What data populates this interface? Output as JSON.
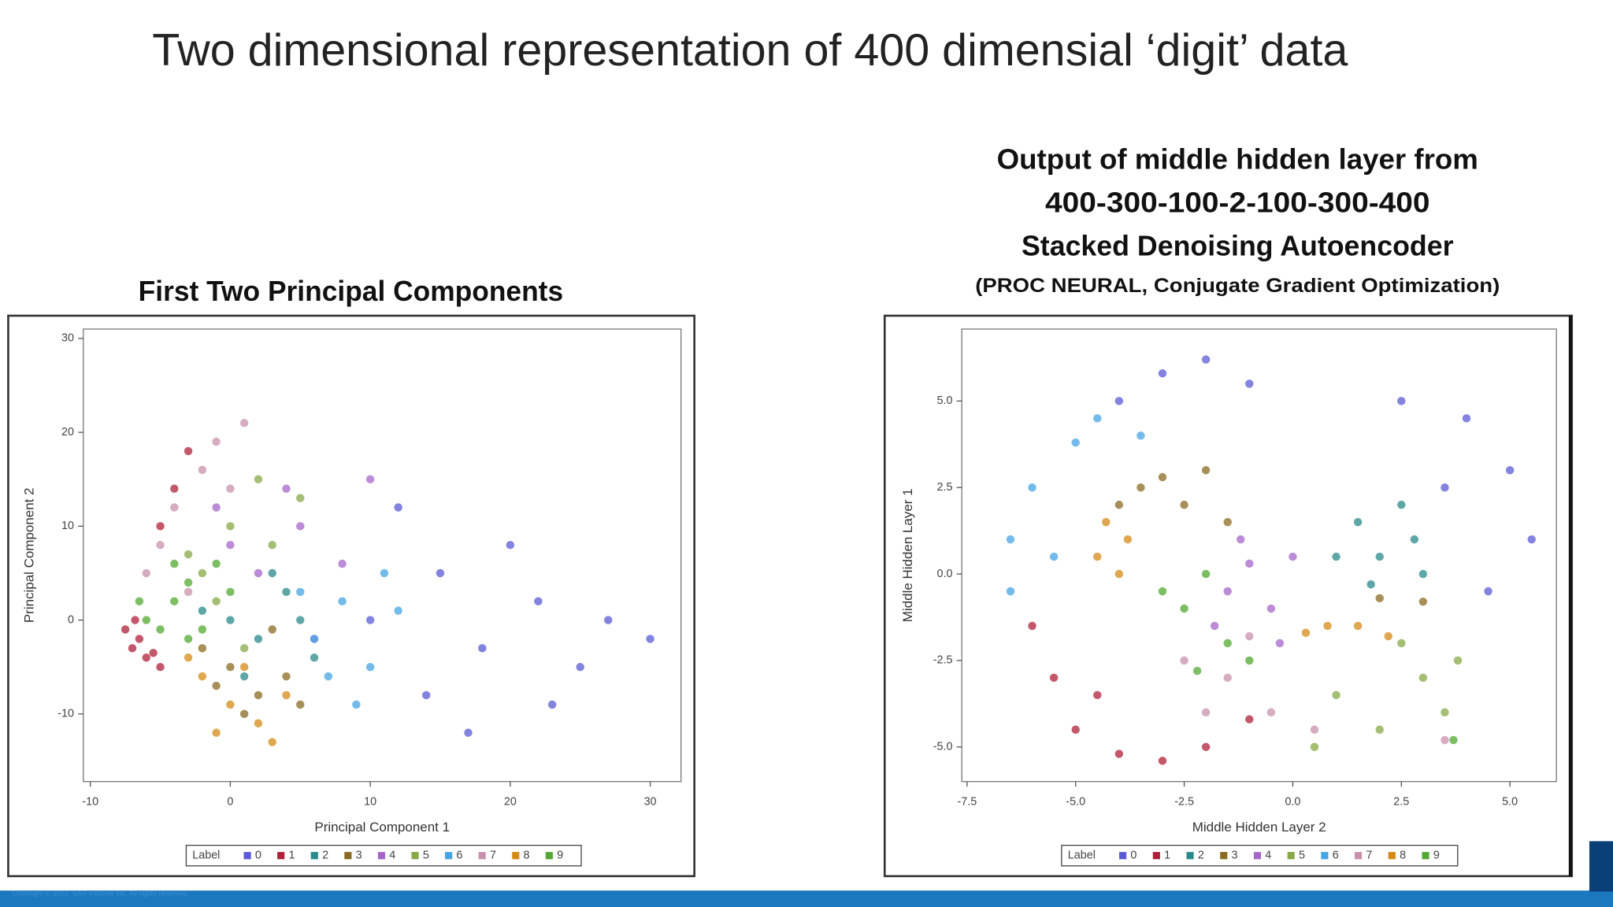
{
  "title": "Two dimensional representation of 400 dimensial ‘digit’ data",
  "footer": "Copyright © 2012, SAS Institute Inc. All rights reserved.",
  "chart_data": [
    {
      "type": "scatter",
      "title": [
        "First Two Principal Components"
      ],
      "xlabel": "Principal Component 1",
      "ylabel": "Principal Component 2",
      "legend_title": "Label",
      "xlim": [
        -10.5,
        32.2
      ],
      "ylim": [
        -17.2,
        31
      ],
      "xticks": [
        -10,
        0,
        10,
        20,
        30
      ],
      "yticks": [
        -10,
        0,
        10,
        20,
        30
      ],
      "series": [
        {
          "name": "0",
          "color": "#5a5ad6",
          "x": [
            10,
            15,
            18,
            22,
            25,
            14,
            20,
            12,
            27,
            17,
            23,
            30
          ],
          "y": [
            0,
            5,
            -3,
            2,
            -5,
            -8,
            8,
            12,
            0,
            -12,
            -9,
            -2
          ]
        },
        {
          "name": "1",
          "color": "#b0203a",
          "x": [
            -7,
            -6.5,
            -7.5,
            -6,
            -5,
            -4,
            -5,
            -3,
            -6.8,
            -5.5
          ],
          "y": [
            -3,
            -2,
            -1,
            -4,
            -5,
            14,
            10,
            18,
            0,
            -3.5
          ]
        },
        {
          "name": "2",
          "color": "#2a8a8a",
          "x": [
            0,
            2,
            4,
            -2,
            6,
            3,
            1,
            5
          ],
          "y": [
            0,
            -2,
            3,
            1,
            -4,
            5,
            -6,
            0
          ]
        },
        {
          "name": "3",
          "color": "#8a6a22",
          "x": [
            0,
            2,
            -2,
            4,
            1,
            3,
            -1,
            5
          ],
          "y": [
            -5,
            -8,
            -3,
            -6,
            -10,
            -1,
            -7,
            -9
          ]
        },
        {
          "name": "4",
          "color": "#a566c8",
          "x": [
            2,
            5,
            0,
            8,
            4,
            -1,
            6,
            10
          ],
          "y": [
            5,
            10,
            8,
            6,
            14,
            12,
            -2,
            15
          ]
        },
        {
          "name": "5",
          "color": "#86a846",
          "x": [
            -2,
            0,
            2,
            -1,
            3,
            5,
            1,
            -3
          ],
          "y": [
            5,
            10,
            15,
            2,
            8,
            13,
            -3,
            7
          ]
        },
        {
          "name": "6",
          "color": "#44a4e4",
          "x": [
            6,
            8,
            10,
            5,
            9,
            12,
            7,
            11
          ],
          "y": [
            -2,
            2,
            -5,
            3,
            -9,
            1,
            -6,
            5
          ]
        },
        {
          "name": "7",
          "color": "#c890ac",
          "x": [
            -4,
            -2,
            -5,
            -1,
            0,
            -3,
            1,
            -6
          ],
          "y": [
            12,
            16,
            8,
            19,
            14,
            3,
            21,
            5
          ]
        },
        {
          "name": "8",
          "color": "#d48a14",
          "x": [
            -2,
            0,
            2,
            -3,
            1,
            3,
            -1,
            4
          ],
          "y": [
            -6,
            -9,
            -11,
            -4,
            -5,
            -13,
            -12,
            -8
          ]
        },
        {
          "name": "9",
          "color": "#52a832",
          "x": [
            -6,
            -4,
            -5,
            -3,
            -2,
            -4,
            0,
            -6.5,
            -1,
            -3
          ],
          "y": [
            0,
            2,
            -1,
            4,
            -1,
            6,
            3,
            2,
            6,
            -2
          ]
        }
      ]
    },
    {
      "type": "scatter",
      "title": [
        "Output of middle hidden layer from",
        "400-300-100-2-100-300-400",
        "Stacked Denoising Autoencoder"
      ],
      "subtitle": "(PROC NEURAL, Conjugate Gradient Optimization)",
      "xlabel": "Middle Hidden Layer 2",
      "ylabel": "Middle Hidden Layer 1",
      "legend_title": "Label",
      "xlim": [
        -7.62,
        6.07
      ],
      "ylim": [
        -6.0,
        7.08
      ],
      "xticks": [
        -7.5,
        {
          "value": -5,
          "label": "-5.0"
        },
        -2.5,
        {
          "value": 0,
          "label": "0.0"
        },
        2.5,
        {
          "value": 5,
          "label": "5.0"
        }
      ],
      "yticks": [
        {
          "value": -5,
          "label": "-5.0"
        },
        -2.5,
        {
          "value": 0,
          "label": "0.0"
        },
        2.5,
        {
          "value": 5,
          "label": "5.0"
        }
      ],
      "series": [
        {
          "name": "0",
          "color": "#5a5ad6",
          "x": [
            -3,
            -2,
            -1,
            2.5,
            4,
            5,
            5.5,
            4.5,
            -4,
            3.5
          ],
          "y": [
            5.8,
            6.2,
            5.5,
            5,
            4.5,
            3,
            1,
            -0.5,
            5,
            2.5
          ]
        },
        {
          "name": "1",
          "color": "#b0203a",
          "x": [
            -5.5,
            -5,
            -4,
            -3,
            -2,
            -6,
            -4.5,
            -1
          ],
          "y": [
            -3,
            -4.5,
            -5.2,
            -5.4,
            -5,
            -1.5,
            -3.5,
            -4.2
          ]
        },
        {
          "name": "2",
          "color": "#2a8a8a",
          "x": [
            1.5,
            2,
            2.8,
            1,
            2.5,
            1.8,
            3
          ],
          "y": [
            1.5,
            0.5,
            1,
            0.5,
            2,
            -0.3,
            0
          ]
        },
        {
          "name": "3",
          "color": "#8a6a22",
          "x": [
            -3.5,
            -3,
            -2.5,
            -4,
            -2,
            -1.5,
            2,
            3
          ],
          "y": [
            2.5,
            2.8,
            2,
            2,
            3,
            1.5,
            -0.7,
            -0.8
          ]
        },
        {
          "name": "4",
          "color": "#a566c8",
          "x": [
            -1.5,
            -1,
            -1.8,
            -0.5,
            -1.2,
            -0.3,
            0
          ],
          "y": [
            -0.5,
            0.3,
            -1.5,
            -1,
            1,
            -2,
            0.5
          ]
        },
        {
          "name": "5",
          "color": "#86a846",
          "x": [
            3,
            3.5,
            2.5,
            1,
            0.5,
            2,
            3.8
          ],
          "y": [
            -3,
            -4,
            -2,
            -3.5,
            -5,
            -4.5,
            -2.5
          ]
        },
        {
          "name": "6",
          "color": "#44a4e4",
          "x": [
            -6.5,
            -6,
            -5,
            -4.5,
            -6.5,
            -5.5,
            -3.5
          ],
          "y": [
            1,
            2.5,
            3.8,
            4.5,
            -0.5,
            0.5,
            4
          ]
        },
        {
          "name": "7",
          "color": "#c890ac",
          "x": [
            -1.5,
            -0.5,
            -2.5,
            0.5,
            -1,
            -2,
            3.5
          ],
          "y": [
            -3,
            -4,
            -2.5,
            -4.5,
            -1.8,
            -4,
            -4.8
          ]
        },
        {
          "name": "8",
          "color": "#d48a14",
          "x": [
            -4.5,
            -4,
            -3.8,
            0.3,
            0.8,
            1.5,
            2.2,
            -4.3
          ],
          "y": [
            0.5,
            0,
            1,
            -1.7,
            -1.5,
            -1.5,
            -1.8,
            1.5
          ]
        },
        {
          "name": "9",
          "color": "#52a832",
          "x": [
            -2.5,
            -2,
            -1.5,
            -3,
            -2.2,
            3.7,
            -1
          ],
          "y": [
            -1,
            0,
            -2,
            -0.5,
            -2.8,
            -4.8,
            -2.5
          ]
        }
      ]
    }
  ]
}
